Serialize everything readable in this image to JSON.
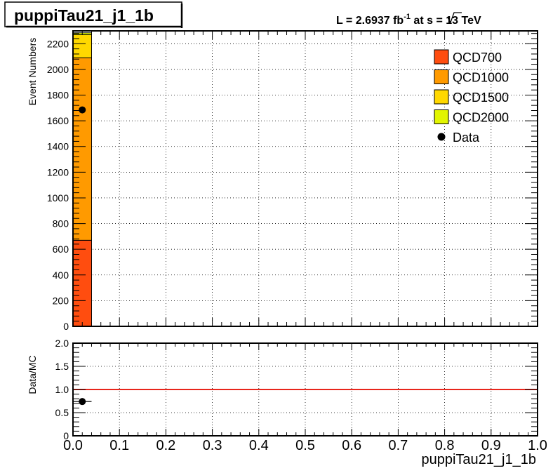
{
  "title": "puppiTau21_j1_1b",
  "lumi": {
    "prefix": "L = 2.6937 fb",
    "exponent": "-1",
    "mid": " at  ",
    "s": "s",
    "suffix": " = 13 TeV"
  },
  "colors": {
    "QCD700": "#ff4d0f",
    "QCD1000": "#ff9a00",
    "QCD1500": "#ffd800",
    "QCD2000": "#e2f501",
    "Data": "#000000",
    "ratio_line": "#e8261c",
    "grid": "#000000"
  },
  "chart_data": [
    {
      "type": "bar",
      "stacked": true,
      "title": "puppiTau21_j1_1b",
      "ylabel": "Event Numbers",
      "xlabel": "",
      "xlim": [
        0,
        1
      ],
      "ylim": [
        0,
        2300
      ],
      "grid": true,
      "legend_position": "top-right",
      "y_ticks": [
        0,
        200,
        400,
        600,
        800,
        1000,
        1200,
        1400,
        1600,
        1800,
        2000,
        2200
      ],
      "y_tick_labels": [
        "0",
        "200",
        "400",
        "600",
        "800",
        "1000",
        "1200",
        "1400",
        "1600",
        "1800",
        "2000",
        "2200"
      ],
      "bins": [
        [
          0,
          0.04
        ]
      ],
      "series": [
        {
          "name": "QCD700",
          "values": [
            670
          ]
        },
        {
          "name": "QCD1000",
          "values": [
            1420
          ]
        },
        {
          "name": "QCD1500",
          "values": [
            180
          ]
        },
        {
          "name": "QCD2000",
          "values": [
            15
          ]
        }
      ],
      "data": {
        "name": "Data",
        "x": [
          0.02
        ],
        "y": [
          1685
        ]
      },
      "legend": [
        "QCD700",
        "QCD1000",
        "QCD1500",
        "QCD2000",
        "Data"
      ]
    },
    {
      "type": "scatter",
      "title": "",
      "ylabel": "Data/MC",
      "xlabel": "puppiTau21_j1_1b",
      "xlim": [
        0,
        1
      ],
      "ylim": [
        0,
        2
      ],
      "grid": true,
      "reference_line": 1.0,
      "x_ticks": [
        0,
        0.1,
        0.2,
        0.3,
        0.4,
        0.5,
        0.6,
        0.7,
        0.8,
        0.9,
        1.0
      ],
      "x_tick_labels": [
        "0.0",
        "0.1",
        "0.2",
        "0.3",
        "0.4",
        "0.5",
        "0.6",
        "0.7",
        "0.8",
        "0.9",
        "1.0"
      ],
      "y_ticks": [
        0,
        0.5,
        1.0,
        1.5,
        2.0
      ],
      "y_tick_labels": [
        "0",
        "0.5",
        "1.0",
        "1.5",
        "2.0"
      ],
      "points": {
        "x": [
          0.02
        ],
        "y": [
          0.74
        ],
        "xerr": [
          0.02
        ]
      }
    }
  ]
}
